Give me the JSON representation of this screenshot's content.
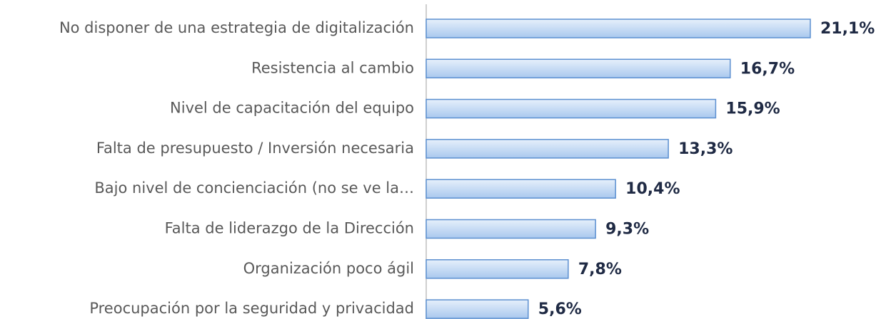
{
  "chart_data": {
    "type": "bar",
    "orientation": "horizontal",
    "categories": [
      "No disponer de una estrategia de digitalización",
      "Resistencia al cambio",
      "Nivel de capacitación del equipo",
      "Falta de presupuesto / Inversión necesaria",
      "Bajo nivel de concienciación (no se ve la…",
      "Falta de liderazgo de la Dirección",
      "Organización poco ágil",
      "Preocupación por la seguridad y privacidad"
    ],
    "values": [
      21.1,
      16.7,
      15.9,
      13.3,
      10.4,
      9.3,
      7.8,
      5.6
    ],
    "value_labels": [
      "21,1%",
      "16,7%",
      "15,9%",
      "13,3%",
      "10,4%",
      "9,3%",
      "7,8%",
      "5,6%"
    ],
    "color": "#a9c8ee"
  }
}
